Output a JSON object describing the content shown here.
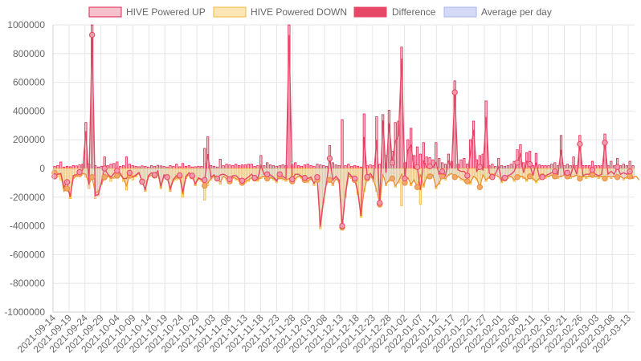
{
  "chart_data": {
    "type": "bar",
    "title": "",
    "xlabel": "",
    "ylabel": "",
    "ylim": [
      -1000000,
      1000000
    ],
    "y_ticks": [
      1000000,
      800000,
      600000,
      400000,
      200000,
      0,
      -200000,
      -400000,
      -600000,
      -800000,
      -1000000
    ],
    "y_tick_labels": [
      "1000000",
      "800000",
      "600000",
      "400000",
      "200000",
      "0",
      "-200000",
      "-400000",
      "-600000",
      "-800000",
      "-1000000"
    ],
    "x_tick_labels": [
      "2021-09-14",
      "2021-09-19",
      "2021-09-24",
      "2021-09-29",
      "2021-10-04",
      "2021-10-09",
      "2021-10-14",
      "2021-10-19",
      "2021-10-24",
      "2021-10-29",
      "2021-11-03",
      "2021-11-08",
      "2021-11-13",
      "2021-11-18",
      "2021-11-23",
      "2021-11-28",
      "2021-12-03",
      "2021-12-08",
      "2021-12-13",
      "2021-12-18",
      "2021-12-23",
      "2021-12-28",
      "2022-01-02",
      "2022-01-07",
      "2022-01-12",
      "2022-01-17",
      "2022-01-22",
      "2022-01-27",
      "2022-02-01",
      "2022-02-06",
      "2022-02-11",
      "2022-02-16",
      "2022-02-21",
      "2022-02-26",
      "2022-03-03",
      "2022-03-08",
      "2022-03-13"
    ],
    "start_date": "2021-09-14",
    "end_date": "2022-03-15",
    "grid": true,
    "legend_position": "top",
    "colors": {
      "up_fill": "#f6c1cc",
      "up_stroke": "#e0244f",
      "down_fill": "#fde6b5",
      "down_stroke": "#f2b83a",
      "diff": "#e84867",
      "diff_point_fill": "#f29aab",
      "avg_fill": "#d4daf5",
      "avg_stroke": "#aab7ec",
      "avg_line": "#e8903a",
      "avg_point_fill": "#f3a76a",
      "grid": "#e6e6e6",
      "axis": "#d0d0d0"
    },
    "series": [
      {
        "name": "HIVE Powered UP",
        "values": [
          15000,
          20000,
          45000,
          10000,
          15000,
          12000,
          20000,
          18000,
          25000,
          30000,
          320000,
          30000,
          1000000,
          20000,
          10000,
          15000,
          80000,
          20000,
          30000,
          35000,
          45000,
          15000,
          20000,
          80000,
          30000,
          20000,
          15000,
          12000,
          18000,
          15000,
          10000,
          20000,
          15000,
          22000,
          18000,
          15000,
          10000,
          20000,
          15000,
          30000,
          12000,
          35000,
          15000,
          20000,
          10000,
          12000,
          15000,
          15000,
          140000,
          220000,
          20000,
          15000,
          10000,
          65000,
          20000,
          30000,
          25000,
          20000,
          30000,
          20000,
          25000,
          25000,
          30000,
          30000,
          15000,
          20000,
          90000,
          20000,
          40000,
          25000,
          20000,
          15000,
          20000,
          25000,
          20000,
          1000000,
          25000,
          40000,
          20000,
          15000,
          25000,
          30000,
          20000,
          15000,
          30000,
          25000,
          20000,
          15000,
          160000,
          40000,
          25000,
          20000,
          340000,
          20000,
          30000,
          15000,
          20000,
          15000,
          10000,
          380000,
          20000,
          25000,
          20000,
          360000,
          30000,
          375000,
          90000,
          405000,
          120000,
          320000,
          330000,
          845000,
          40000,
          200000,
          280000,
          90000,
          150000,
          100000,
          180000,
          80000,
          75000,
          60000,
          180000,
          70000,
          40000,
          30000,
          100000,
          50000,
          610000,
          30000,
          60000,
          70000,
          30000,
          200000,
          330000,
          60000,
          90000,
          100000,
          470000,
          20000,
          30000,
          15000,
          70000,
          20000,
          15000,
          20000,
          30000,
          50000,
          130000,
          165000,
          40000,
          110000,
          120000,
          20000,
          105000,
          25000,
          20000,
          20000,
          20000,
          30000,
          40000,
          20000,
          230000,
          20000,
          30000,
          20000,
          80000,
          20000,
          230000,
          20000,
          20000,
          20000,
          50000,
          20000,
          20000,
          20000,
          240000,
          20000,
          50000,
          20000,
          70000,
          20000,
          30000,
          20000,
          50000,
          20000
        ]
      },
      {
        "name": "HIVE Powered DOWN",
        "values": [
          -50000,
          -60000,
          -80000,
          -140000,
          -110000,
          -210000,
          -70000,
          -60000,
          -50000,
          -40000,
          -60000,
          -140000,
          -70000,
          -210000,
          -190000,
          -110000,
          -80000,
          -60000,
          -90000,
          -70000,
          -60000,
          -50000,
          -90000,
          -150000,
          -60000,
          -80000,
          -60000,
          -40000,
          -110000,
          -160000,
          -60000,
          -50000,
          -60000,
          -40000,
          -140000,
          -60000,
          -70000,
          -160000,
          -90000,
          -80000,
          -60000,
          -200000,
          -70000,
          -50000,
          -60000,
          -120000,
          -80000,
          -90000,
          -220000,
          -120000,
          -80000,
          -60000,
          -80000,
          -110000,
          -60000,
          -80000,
          -100000,
          -70000,
          -80000,
          -90000,
          -110000,
          -100000,
          -90000,
          -70000,
          -80000,
          -90000,
          -70000,
          -60000,
          -80000,
          -70000,
          -80000,
          -100000,
          -60000,
          -80000,
          -90000,
          -80000,
          -100000,
          -80000,
          -60000,
          -70000,
          -90000,
          -100000,
          -80000,
          -120000,
          -90000,
          -420000,
          -240000,
          -110000,
          -90000,
          -120000,
          -80000,
          -100000,
          -430000,
          -200000,
          -60000,
          -70000,
          -90000,
          -180000,
          -340000,
          -160000,
          -80000,
          -60000,
          -90000,
          -160000,
          -270000,
          -40000,
          -120000,
          -90000,
          -80000,
          -130000,
          -100000,
          -260000,
          -110000,
          -70000,
          -120000,
          -90000,
          -140000,
          -250000,
          -130000,
          -70000,
          -60000,
          -50000,
          -140000,
          -110000,
          -60000,
          -80000,
          -50000,
          -40000,
          -70000,
          -60000,
          -80000,
          -90000,
          -100000,
          -110000,
          -60000,
          -80000,
          -140000,
          -50000,
          -90000,
          -70000,
          -60000,
          -50000,
          -60000,
          -100000,
          -80000,
          -70000,
          -60000,
          -90000,
          -70000,
          -60000,
          -70000,
          -90000,
          -60000,
          -80000,
          -100000,
          -80000,
          -60000,
          -70000,
          -60000,
          -50000,
          -60000,
          -70000,
          -60000,
          -50000,
          -60000,
          -70000,
          -60000,
          -50000,
          -80000,
          -60000,
          -70000,
          -60000,
          -50000,
          -60000,
          -70000,
          -60000,
          -80000,
          -60000,
          -70000,
          -60000,
          -70000,
          -60000,
          -80000,
          -70000,
          -60000,
          -70000,
          -60000,
          -90000
        ]
      },
      {
        "name": "Difference",
        "values": [
          -55000,
          -40000,
          -35000,
          -130000,
          -95000,
          -200000,
          -50000,
          -42000,
          -25000,
          -10000,
          260000,
          -110000,
          930000,
          -190000,
          -180000,
          -95000,
          0,
          -40000,
          -60000,
          -35000,
          -15000,
          -35000,
          -70000,
          -70000,
          -30000,
          -60000,
          -45000,
          -28000,
          -92000,
          -145000,
          -50000,
          -30000,
          -45000,
          -18000,
          -122000,
          -45000,
          -60000,
          -140000,
          -75000,
          -50000,
          -48000,
          -165000,
          -55000,
          -30000,
          -50000,
          -108000,
          -65000,
          -75000,
          -80000,
          100000,
          -60000,
          -45000,
          -70000,
          -45000,
          -40000,
          -50000,
          -75000,
          -50000,
          -50000,
          -70000,
          -85000,
          -75000,
          -60000,
          -40000,
          -65000,
          -70000,
          20000,
          -40000,
          -40000,
          -45000,
          -60000,
          -85000,
          -40000,
          -55000,
          -70000,
          930000,
          -75000,
          -40000,
          -40000,
          -55000,
          -65000,
          -70000,
          -60000,
          -105000,
          -60000,
          -400000,
          -220000,
          -95000,
          70000,
          -80000,
          -55000,
          -80000,
          -400000,
          -180000,
          -30000,
          -55000,
          -70000,
          -165000,
          -330000,
          220000,
          -60000,
          -35000,
          -70000,
          200000,
          -240000,
          335000,
          -30000,
          315000,
          40000,
          190000,
          230000,
          765000,
          -70000,
          130000,
          160000,
          0,
          10000,
          -150000,
          50000,
          10000,
          15000,
          10000,
          40000,
          -40000,
          -20000,
          -50000,
          50000,
          10000,
          530000,
          -10000,
          -20000,
          -20000,
          -50000,
          110000,
          270000,
          -20000,
          10000,
          -10000,
          360000,
          -30000,
          -60000,
          -35000,
          10000,
          -80000,
          -65000,
          -50000,
          -40000,
          -20000,
          40000,
          100000,
          -30000,
          50000,
          30000,
          -50000,
          40000,
          -55000,
          -60000,
          -50000,
          -40000,
          -30000,
          -20000,
          -40000,
          130000,
          -40000,
          -30000,
          -50000,
          20000,
          -40000,
          170000,
          -50000,
          -40000,
          -40000,
          -10000,
          -40000,
          -50000,
          -40000,
          180000,
          -40000,
          -20000,
          -40000,
          10000,
          -40000,
          -30000,
          -40000,
          -20000,
          -70000
        ]
      },
      {
        "name": "Average per day",
        "values": [
          -30000,
          -35000,
          -40000,
          -160000,
          -140000,
          -190000,
          -70000,
          -50000,
          -40000,
          -35000,
          -40000,
          -110000,
          -60000,
          -170000,
          -160000,
          -110000,
          -60000,
          -50000,
          -70000,
          -60000,
          -50000,
          -45000,
          -70000,
          -120000,
          -50000,
          -60000,
          -50000,
          -35000,
          -90000,
          -150000,
          -60000,
          -45000,
          -50000,
          -35000,
          -130000,
          -55000,
          -60000,
          -150000,
          -80000,
          -65000,
          -55000,
          -180000,
          -60000,
          -45000,
          -55000,
          -110000,
          -70000,
          -80000,
          -120000,
          -100000,
          -70000,
          -55000,
          -70000,
          -95000,
          -55000,
          -70000,
          -90000,
          -60000,
          -70000,
          -80000,
          -100000,
          -90000,
          -80000,
          -65000,
          -70000,
          -80000,
          -60000,
          -55000,
          -70000,
          -60000,
          -70000,
          -90000,
          -55000,
          -70000,
          -80000,
          -70000,
          -90000,
          -70000,
          -55000,
          -60000,
          -80000,
          -90000,
          -70000,
          -100000,
          -80000,
          -410000,
          -230000,
          -100000,
          -80000,
          -110000,
          -70000,
          -90000,
          -410000,
          -190000,
          -55000,
          -60000,
          -80000,
          -170000,
          -330000,
          -150000,
          -70000,
          -55000,
          -80000,
          -150000,
          -250000,
          -40000,
          -110000,
          -80000,
          -70000,
          -120000,
          -90000,
          -40000,
          -100000,
          -65000,
          -110000,
          -80000,
          -130000,
          -40000,
          -120000,
          -60000,
          -55000,
          -45000,
          -130000,
          -100000,
          -55000,
          -70000,
          -45000,
          -35000,
          -60000,
          -55000,
          -70000,
          -80000,
          -90000,
          -100000,
          -55000,
          -70000,
          -130000,
          -45000,
          -80000,
          -60000,
          -55000,
          -45000,
          -55000,
          -90000,
          -70000,
          -60000,
          -55000,
          -80000,
          -60000,
          -55000,
          -60000,
          -80000,
          -55000,
          -70000,
          -90000,
          -70000,
          -55000,
          -60000,
          -55000,
          -45000,
          -55000,
          -60000,
          -55000,
          -45000,
          -55000,
          -60000,
          -55000,
          -45000,
          -70000,
          -55000,
          -60000,
          -55000,
          -45000,
          -55000,
          -60000,
          -55000,
          -70000,
          -55000,
          -60000,
          -55000,
          -60000,
          -55000,
          -70000,
          -60000,
          -55000,
          -60000,
          -55000,
          -80000
        ]
      }
    ]
  }
}
